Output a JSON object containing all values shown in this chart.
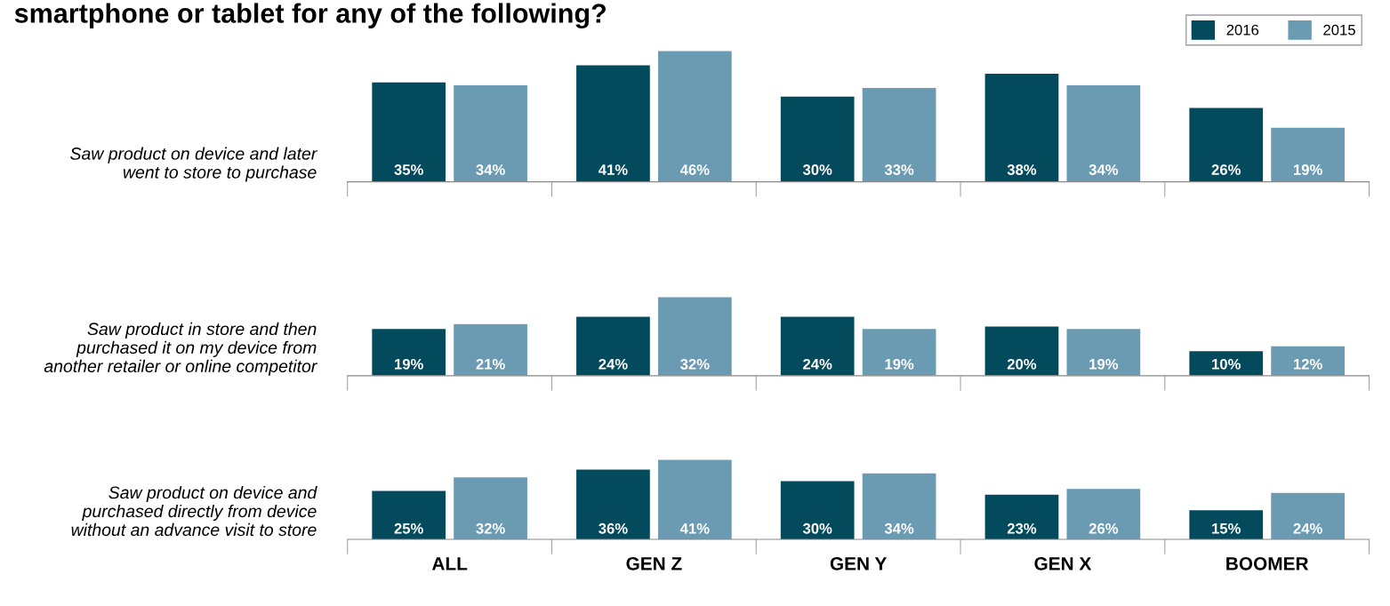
{
  "chart_data": [
    {
      "type": "bar",
      "title": "smartphone or tablet for any of the following?",
      "ylabel": "Saw product on device and later\nwent to store to purchase",
      "categories": [
        null,
        null,
        null,
        null,
        null
      ],
      "legend": "top right",
      "tick_labels": false,
      "series": [
        {
          "name": "2016",
          "color": "#024a5c",
          "values": [
            35,
            41,
            30,
            38,
            26
          ],
          "value_labels": [
            "35%",
            "41%",
            "30%",
            "38%",
            "26%"
          ]
        },
        {
          "name": "2015",
          "color": "#6b9bb3",
          "values": [
            34,
            46,
            33,
            34,
            19
          ],
          "value_labels": [
            "34%",
            "46%",
            "33%",
            "34%",
            "19%"
          ]
        }
      ]
    },
    {
      "type": "bar",
      "ylabel": "Saw product in store and then\npurchased it on my device from\nanother retailer or online competitor",
      "categories": [
        null,
        null,
        null,
        null,
        null
      ],
      "tick_labels": false,
      "series": [
        {
          "color": "#024a5c",
          "values": [
            19,
            24,
            24,
            20,
            10
          ],
          "value_labels": [
            "19%",
            "24%",
            "24%",
            "20%",
            "10%"
          ]
        },
        {
          "color": "#6b9bb3",
          "values": [
            21,
            32,
            19,
            19,
            12
          ],
          "value_labels": [
            "21%",
            "32%",
            "19%",
            "19%",
            "12%"
          ]
        }
      ]
    },
    {
      "type": "bar",
      "ylabel": "Saw product on device and\npurchased directly from device\nwithout an advance visit to store",
      "categories": [
        "ALL",
        "GEN Z",
        "GEN Y",
        "GEN X",
        "BOOMER"
      ],
      "tick_labels": "x",
      "series": [
        {
          "color": "#024a5c",
          "values": [
            25,
            36,
            30,
            23,
            15
          ],
          "value_labels": [
            "25%",
            "36%",
            "30%",
            "23%",
            "15%"
          ]
        },
        {
          "color": "#6b9bb3",
          "values": [
            32,
            41,
            34,
            26,
            24
          ],
          "value_labels": [
            "32%",
            "41%",
            "34%",
            "26%",
            "24%"
          ]
        }
      ]
    }
  ]
}
